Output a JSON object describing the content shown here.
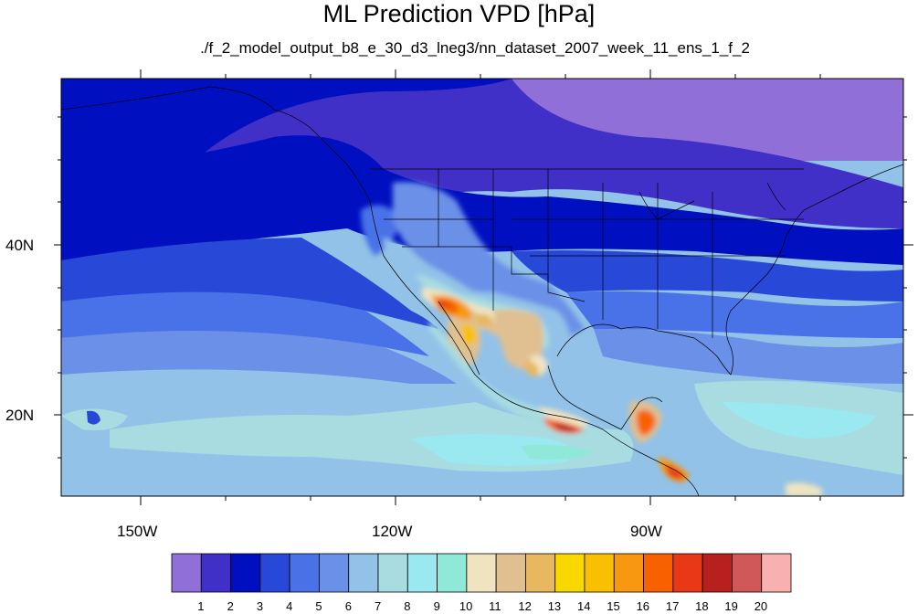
{
  "title": "ML Prediction VPD [hPa]",
  "subtitle": "./f_2_model_output_b8_e_30_d3_lneg3/nn_dataset_2007_week_11_ens_1_f_2",
  "map": {
    "projection": "cylindrical equidistant",
    "lon_range": [
      -160,
      5
    ],
    "lat_range": [
      10,
      58
    ],
    "lon_ticks": [
      "150W",
      "120W",
      "90W"
    ],
    "lat_ticks": [
      "40N",
      "20N"
    ]
  },
  "colorbar": {
    "labels": [
      "1",
      "2",
      "3",
      "4",
      "5",
      "6",
      "7",
      "8",
      "9",
      "10",
      "11",
      "12",
      "13",
      "14",
      "15",
      "16",
      "17",
      "18",
      "19",
      "20"
    ],
    "colors": [
      "#9070d8",
      "#4030c8",
      "#0010c0",
      "#2848d8",
      "#4a72e8",
      "#6a90e8",
      "#92c2e8",
      "#a8dce0",
      "#9ae8f0",
      "#90e8d8",
      "#f0e4c0",
      "#e0c090",
      "#e8b860",
      "#f8d800",
      "#f8c000",
      "#f89810",
      "#f86000",
      "#e83818",
      "#b82020",
      "#d05858",
      "#f8b0b0"
    ]
  }
}
